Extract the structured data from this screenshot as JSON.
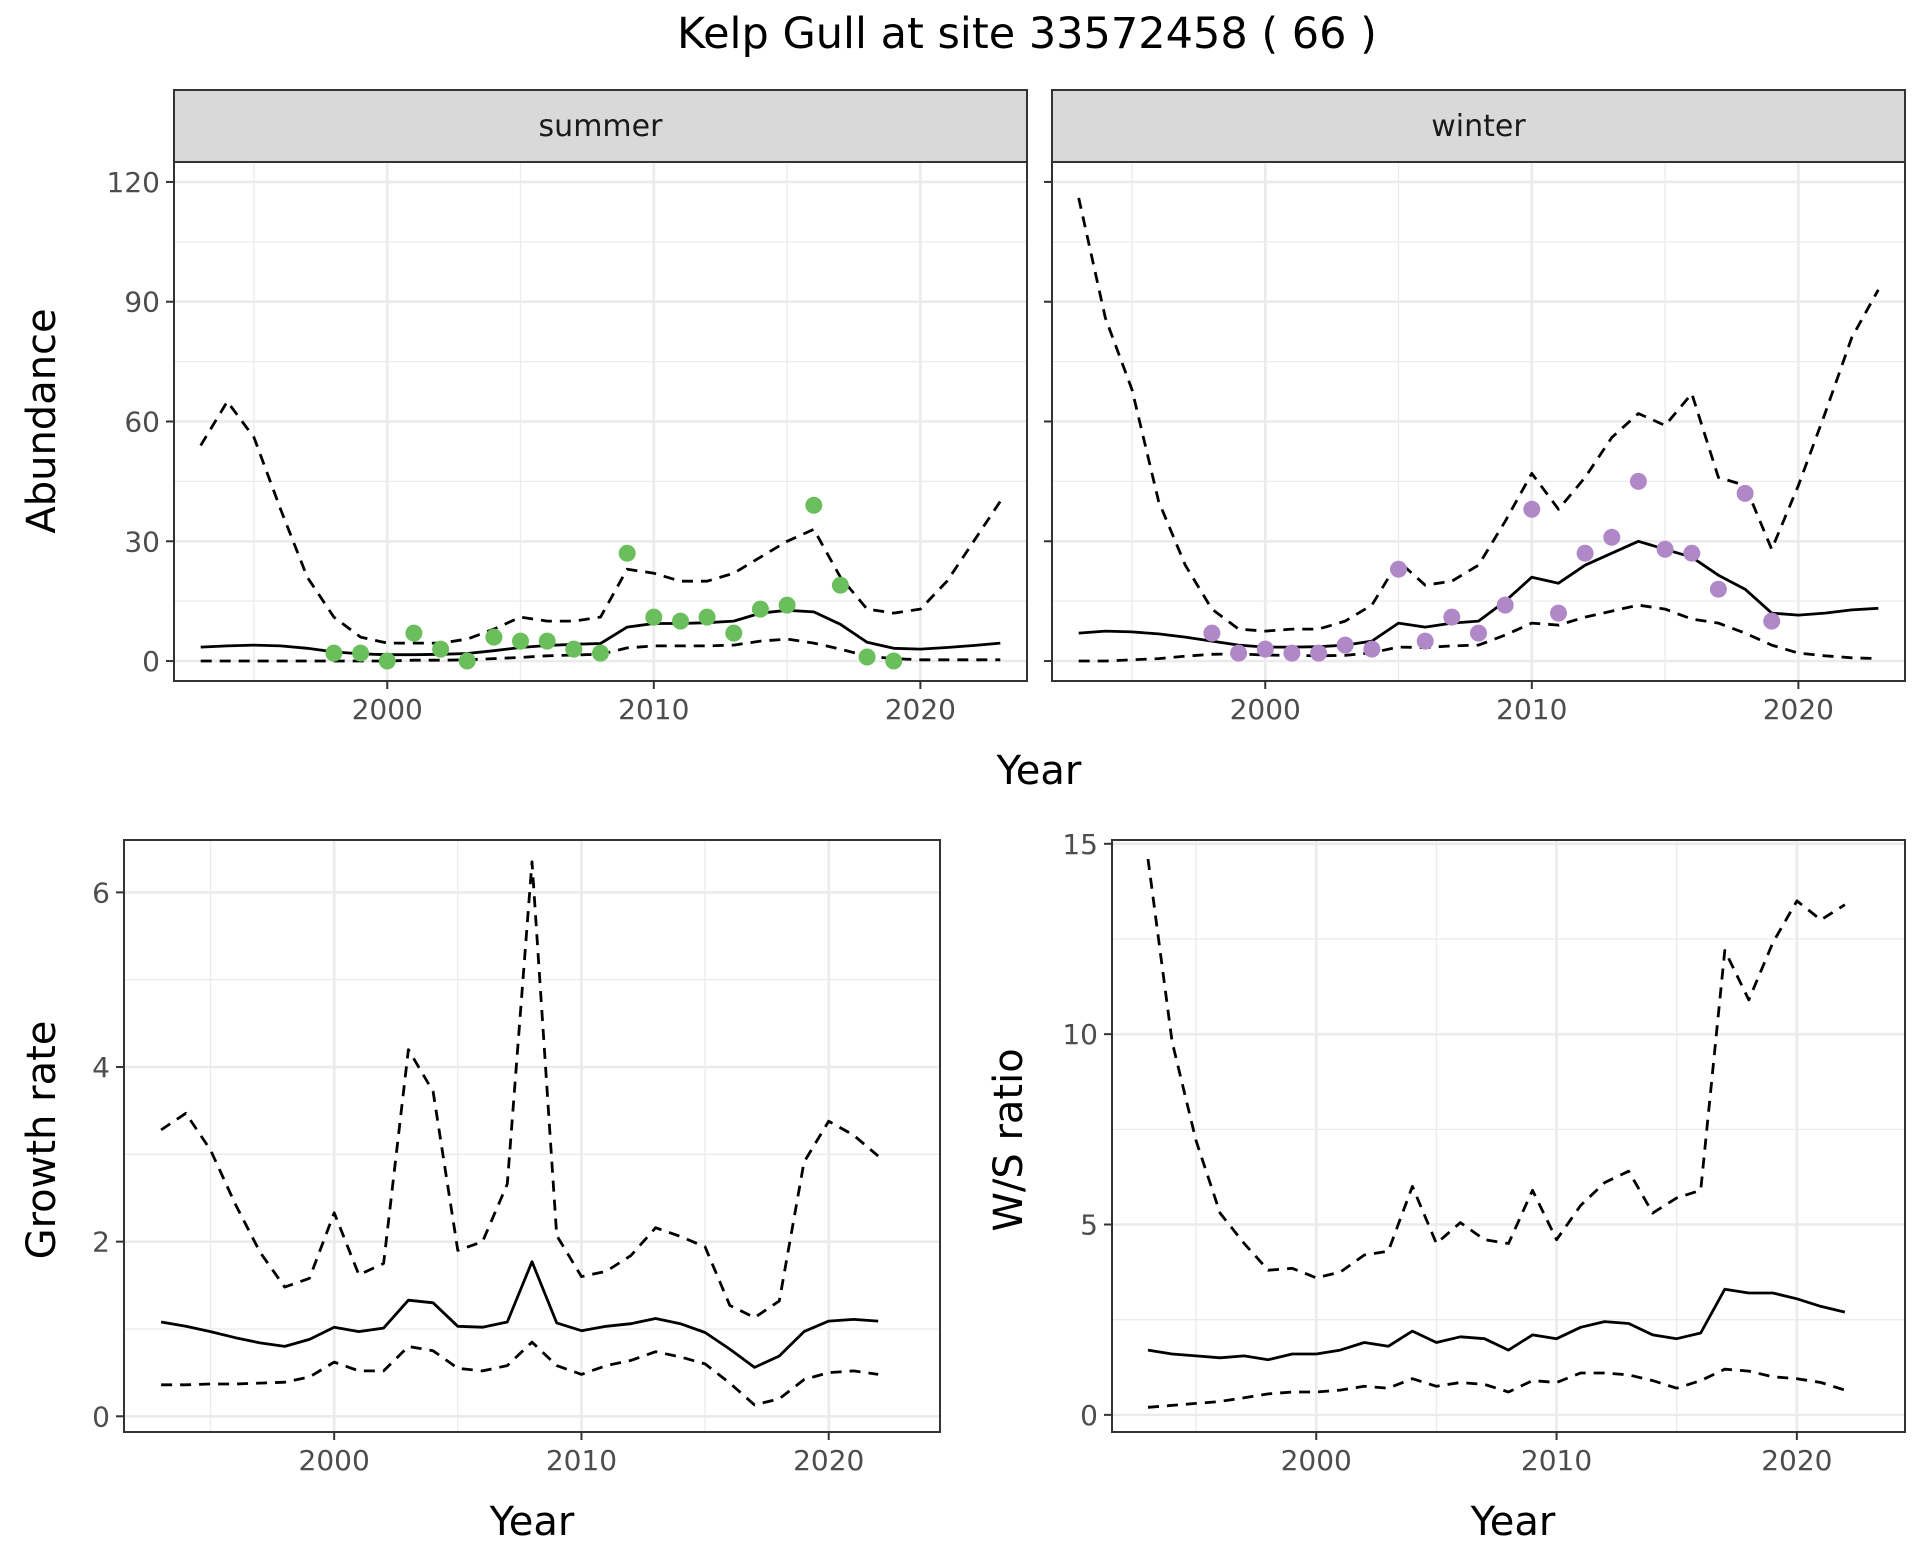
{
  "title": "Kelp Gull at site 33572458 ( 66 )",
  "colors": {
    "summer_points": "#6ABF5C",
    "winter_points": "#B088C8",
    "line": "#000000",
    "grid": "#EBEBEB",
    "strip": "#D9D9D9"
  },
  "chart_data": [
    {
      "type": "line",
      "panel": "summer",
      "strip_label": "summer",
      "ylabel": "Abundance",
      "xlabel": "Year",
      "xlim": [
        1992,
        2024
      ],
      "ylim": [
        -5,
        125
      ],
      "xticks": [
        2000,
        2010,
        2020
      ],
      "yticks": [
        0,
        30,
        60,
        90,
        120
      ],
      "grid": true,
      "points": {
        "x": [
          1998,
          1999,
          2000,
          2001,
          2002,
          2003,
          2004,
          2005,
          2006,
          2007,
          2008,
          2009,
          2010,
          2011,
          2012,
          2013,
          2014,
          2015,
          2016,
          2017,
          2018,
          2019
        ],
        "y": [
          2,
          2,
          0,
          7,
          3,
          0,
          6,
          5,
          5,
          3,
          2,
          27,
          11,
          10,
          11,
          7,
          13,
          14,
          39,
          19,
          1,
          0
        ]
      },
      "series": [
        {
          "style": "solid",
          "x": [
            1993,
            1994,
            1995,
            1996,
            1997,
            1998,
            1999,
            2000,
            2001,
            2002,
            2003,
            2004,
            2005,
            2006,
            2007,
            2008,
            2009,
            2010,
            2011,
            2012,
            2013,
            2014,
            2015,
            2016,
            2017,
            2018,
            2019,
            2020,
            2021,
            2022,
            2023
          ],
          "y": [
            3.5,
            3.8,
            4,
            3.8,
            3.2,
            2.3,
            1.8,
            1.6,
            1.6,
            1.7,
            1.9,
            2.6,
            3.4,
            3.9,
            4.2,
            4.4,
            8.5,
            9.4,
            9.4,
            9.6,
            10,
            12,
            12.7,
            12.3,
            9.2,
            4.7,
            3.2,
            3,
            3.4,
            3.9,
            4.5
          ]
        },
        {
          "style": "dashed",
          "x": [
            1993,
            1994,
            1995,
            1996,
            1997,
            1998,
            1999,
            2000,
            2001,
            2002,
            2003,
            2004,
            2005,
            2006,
            2007,
            2008,
            2009,
            2010,
            2011,
            2012,
            2013,
            2014,
            2015,
            2016,
            2017,
            2018,
            2019,
            2020,
            2021,
            2022,
            2023
          ],
          "y": [
            54,
            65,
            56,
            38,
            21,
            11,
            6,
            4.5,
            4.5,
            4.5,
            5.5,
            8,
            11,
            10,
            10,
            11,
            23,
            22,
            20,
            20,
            22,
            26,
            30,
            33,
            21,
            13,
            12,
            13,
            20,
            30,
            40
          ]
        },
        {
          "style": "dashed",
          "x": [
            1993,
            1994,
            1995,
            1996,
            1997,
            1998,
            1999,
            2000,
            2001,
            2002,
            2003,
            2004,
            2005,
            2006,
            2007,
            2008,
            2009,
            2010,
            2011,
            2012,
            2013,
            2014,
            2015,
            2016,
            2017,
            2018,
            2019,
            2020,
            2021,
            2022,
            2023
          ],
          "y": [
            0,
            0,
            0,
            0,
            0,
            0,
            0,
            0,
            0.2,
            0.2,
            0.3,
            0.6,
            0.9,
            1.3,
            1.5,
            1.7,
            3.3,
            3.8,
            3.8,
            3.8,
            4,
            5,
            5.5,
            4.5,
            3,
            1.2,
            0.6,
            0.3,
            0.3,
            0.3,
            0.3
          ]
        }
      ]
    },
    {
      "type": "line",
      "panel": "winter",
      "strip_label": "winter",
      "xlabel": "Year",
      "xlim": [
        1992,
        2024
      ],
      "ylim": [
        -5,
        125
      ],
      "xticks": [
        2000,
        2010,
        2020
      ],
      "grid": true,
      "points": {
        "x": [
          1998,
          1999,
          2000,
          2001,
          2002,
          2003,
          2004,
          2005,
          2006,
          2007,
          2008,
          2009,
          2010,
          2011,
          2012,
          2013,
          2014,
          2015,
          2016,
          2017,
          2018,
          2019
        ],
        "y": [
          7,
          2,
          3,
          2,
          2,
          4,
          3,
          23,
          5,
          11,
          7,
          14,
          38,
          12,
          27,
          31,
          45,
          28,
          27,
          18,
          42,
          10
        ]
      },
      "series": [
        {
          "style": "solid",
          "x": [
            1993,
            1994,
            1995,
            1996,
            1997,
            1998,
            1999,
            2000,
            2001,
            2002,
            2003,
            2004,
            2005,
            2006,
            2007,
            2008,
            2009,
            2010,
            2011,
            2012,
            2013,
            2014,
            2015,
            2016,
            2017,
            2018,
            2019,
            2020,
            2021,
            2022,
            2023
          ],
          "y": [
            7,
            7.5,
            7.3,
            6.8,
            6,
            5,
            4,
            3.5,
            3.5,
            3.6,
            4,
            5,
            9.5,
            8.5,
            9.5,
            10,
            15,
            21,
            19.5,
            24,
            27,
            30,
            28,
            26,
            21.5,
            18,
            12,
            11.5,
            12,
            12.8,
            13.2
          ]
        },
        {
          "style": "dashed",
          "x": [
            1993,
            1994,
            1995,
            1996,
            1997,
            1998,
            1999,
            2000,
            2001,
            2002,
            2003,
            2004,
            2005,
            2006,
            2007,
            2008,
            2009,
            2010,
            2011,
            2012,
            2013,
            2014,
            2015,
            2016,
            2017,
            2018,
            2019,
            2020,
            2021,
            2022,
            2023
          ],
          "y": [
            116,
            86,
            68,
            40,
            24,
            13,
            8,
            7.5,
            8,
            8,
            10,
            14,
            25,
            19,
            20,
            24,
            35,
            47,
            38,
            46,
            56,
            62,
            59,
            67,
            46,
            44,
            28,
            44,
            62,
            81,
            93
          ]
        },
        {
          "style": "dashed",
          "x": [
            1993,
            1994,
            1995,
            1996,
            1997,
            1998,
            1999,
            2000,
            2001,
            2002,
            2003,
            2004,
            2005,
            2006,
            2007,
            2008,
            2009,
            2010,
            2011,
            2012,
            2013,
            2014,
            2015,
            2016,
            2017,
            2018,
            2019,
            2020,
            2021,
            2022,
            2023
          ],
          "y": [
            0,
            0,
            0.3,
            0.6,
            1.2,
            1.7,
            1.8,
            1.5,
            1.4,
            1.3,
            1.4,
            2.1,
            3.5,
            3.4,
            3.8,
            4,
            6.5,
            9.5,
            9,
            11,
            12.5,
            14,
            13,
            10.5,
            9.5,
            7,
            4,
            2,
            1.3,
            0.8,
            0.6
          ]
        }
      ]
    },
    {
      "type": "line",
      "panel": "growth",
      "ylabel": "Growth rate",
      "xlabel": "Year",
      "xlim": [
        1991.5,
        2024.5
      ],
      "ylim": [
        -0.18,
        6.6
      ],
      "xticks": [
        2000,
        2010,
        2020
      ],
      "yticks": [
        0,
        2,
        4,
        6
      ],
      "grid": true,
      "series": [
        {
          "style": "solid",
          "x": [
            1993,
            1994,
            1995,
            1996,
            1997,
            1998,
            1999,
            2000,
            2001,
            2002,
            2003,
            2004,
            2005,
            2006,
            2007,
            2008,
            2009,
            2010,
            2011,
            2012,
            2013,
            2014,
            2015,
            2016,
            2017,
            2018,
            2019,
            2020,
            2021,
            2022
          ],
          "y": [
            1.08,
            1.03,
            0.97,
            0.9,
            0.84,
            0.8,
            0.88,
            1.02,
            0.97,
            1.01,
            1.33,
            1.3,
            1.03,
            1.02,
            1.08,
            1.77,
            1.07,
            0.98,
            1.03,
            1.06,
            1.12,
            1.06,
            0.96,
            0.77,
            0.56,
            0.69,
            0.97,
            1.09,
            1.11,
            1.09
          ]
        },
        {
          "style": "dashed",
          "x": [
            1993,
            1994,
            1995,
            1996,
            1997,
            1998,
            1999,
            2000,
            2001,
            2002,
            2003,
            2004,
            2005,
            2006,
            2007,
            2008,
            2009,
            2010,
            2011,
            2012,
            2013,
            2014,
            2015,
            2016,
            2017,
            2018,
            2019,
            2020,
            2021,
            2022
          ],
          "y": [
            3.28,
            3.47,
            3.05,
            2.43,
            1.88,
            1.48,
            1.58,
            2.33,
            1.62,
            1.75,
            4.2,
            3.72,
            1.9,
            2.0,
            2.66,
            6.35,
            2.07,
            1.6,
            1.66,
            1.84,
            2.16,
            2.06,
            1.94,
            1.27,
            1.13,
            1.32,
            2.91,
            3.38,
            3.22,
            2.98
          ]
        },
        {
          "style": "dashed",
          "x": [
            1993,
            1994,
            1995,
            1996,
            1997,
            1998,
            1999,
            2000,
            2001,
            2002,
            2003,
            2004,
            2005,
            2006,
            2007,
            2008,
            2009,
            2010,
            2011,
            2012,
            2013,
            2014,
            2015,
            2016,
            2017,
            2018,
            2019,
            2020,
            2021,
            2022
          ],
          "y": [
            0.36,
            0.36,
            0.37,
            0.37,
            0.38,
            0.39,
            0.45,
            0.62,
            0.52,
            0.52,
            0.8,
            0.75,
            0.55,
            0.52,
            0.58,
            0.85,
            0.58,
            0.48,
            0.58,
            0.64,
            0.74,
            0.68,
            0.6,
            0.38,
            0.13,
            0.2,
            0.42,
            0.5,
            0.52,
            0.48
          ]
        }
      ]
    },
    {
      "type": "line",
      "panel": "ws_ratio",
      "ylabel": "W/S ratio",
      "xlabel": "Year",
      "xlim": [
        1991.5,
        2024.5
      ],
      "ylim": [
        -0.45,
        15.1
      ],
      "xticks": [
        2000,
        2010,
        2020
      ],
      "yticks": [
        0,
        5,
        10,
        15
      ],
      "grid": true,
      "series": [
        {
          "style": "solid",
          "x": [
            1993,
            1994,
            1995,
            1996,
            1997,
            1998,
            1999,
            2000,
            2001,
            2002,
            2003,
            2004,
            2005,
            2006,
            2007,
            2008,
            2009,
            2010,
            2011,
            2012,
            2013,
            2014,
            2015,
            2016,
            2017,
            2018,
            2019,
            2020,
            2021,
            2022
          ],
          "y": [
            1.7,
            1.6,
            1.55,
            1.5,
            1.55,
            1.45,
            1.6,
            1.6,
            1.7,
            1.9,
            1.8,
            2.2,
            1.9,
            2.05,
            2.0,
            1.7,
            2.1,
            2.0,
            2.3,
            2.45,
            2.4,
            2.1,
            2.0,
            2.15,
            3.3,
            3.2,
            3.2,
            3.05,
            2.85,
            2.7
          ]
        },
        {
          "style": "dashed",
          "x": [
            1993,
            1994,
            1995,
            1996,
            1997,
            1998,
            1999,
            2000,
            2001,
            2002,
            2003,
            2004,
            2005,
            2006,
            2007,
            2008,
            2009,
            2010,
            2011,
            2012,
            2013,
            2014,
            2015,
            2016,
            2017,
            2018,
            2019,
            2020,
            2021,
            2022
          ],
          "y": [
            14.6,
            9.8,
            7.2,
            5.3,
            4.5,
            3.8,
            3.85,
            3.6,
            3.75,
            4.2,
            4.3,
            6.0,
            4.5,
            5.05,
            4.6,
            4.5,
            5.9,
            4.6,
            5.5,
            6.1,
            6.4,
            5.3,
            5.7,
            5.9,
            12.2,
            10.9,
            12.4,
            13.5,
            13.0,
            13.4
          ]
        },
        {
          "style": "dashed",
          "x": [
            1993,
            1994,
            1995,
            1996,
            1997,
            1998,
            1999,
            2000,
            2001,
            2002,
            2003,
            2004,
            2005,
            2006,
            2007,
            2008,
            2009,
            2010,
            2011,
            2012,
            2013,
            2014,
            2015,
            2016,
            2017,
            2018,
            2019,
            2020,
            2021,
            2022
          ],
          "y": [
            0.2,
            0.25,
            0.3,
            0.35,
            0.45,
            0.55,
            0.6,
            0.6,
            0.65,
            0.75,
            0.7,
            0.95,
            0.75,
            0.85,
            0.8,
            0.6,
            0.9,
            0.85,
            1.1,
            1.1,
            1.05,
            0.9,
            0.7,
            0.9,
            1.2,
            1.15,
            1.0,
            0.95,
            0.85,
            0.65
          ]
        }
      ]
    }
  ]
}
